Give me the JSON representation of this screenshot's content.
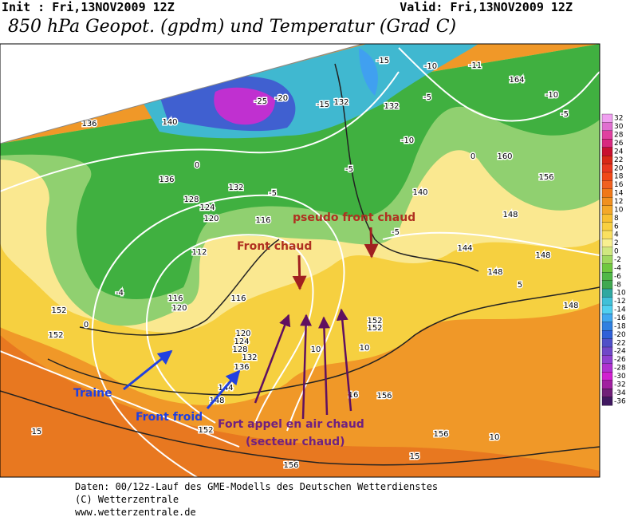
{
  "header": {
    "init": "Init : Fri,13NOV2009  12Z",
    "valid": "Valid: Fri,13NOV2009  12Z",
    "title": "850 hPa Geopot. (gpdm) und Temperatur (Grad C)"
  },
  "colorbar": {
    "labels": [
      32,
      30,
      28,
      26,
      24,
      22,
      20,
      18,
      16,
      14,
      12,
      10,
      8,
      6,
      4,
      2,
      0,
      -2,
      -4,
      -6,
      -8,
      -10,
      -12,
      -14,
      -16,
      -18,
      -20,
      -22,
      -24,
      -26,
      -28,
      -30,
      -32,
      -34,
      -36
    ],
    "colors": [
      "#f0a0f0",
      "#e070d0",
      "#e040a0",
      "#d82880",
      "#c81030",
      "#d82818",
      "#e83820",
      "#f04818",
      "#f06020",
      "#f07818",
      "#f09020",
      "#f4a828",
      "#f8c030",
      "#f8d040",
      "#fae060",
      "#f8f090",
      "#d0e880",
      "#a0d860",
      "#70c840",
      "#50b848",
      "#40a850",
      "#30a8a0",
      "#40c0d8",
      "#50d0f0",
      "#40a8f0",
      "#3080e0",
      "#3060d8",
      "#5050c8",
      "#7048c8",
      "#9040d0",
      "#b030d0",
      "#d020d0",
      "#a020a0",
      "#702078",
      "#401860"
    ]
  },
  "annotations": {
    "pseudo_front": "pseudo front chaud",
    "front_chaud": "Front chaud",
    "traine": "Traine",
    "front_froid": "Front froid",
    "appel": "Fort appel en air chaud",
    "secteur": "(secteur chaud)"
  },
  "contour_labels": [
    "136",
    "140",
    "-25",
    "-20",
    "-15",
    "132",
    "-15",
    "-10",
    "-11",
    "164",
    "-10",
    "-5",
    "132",
    "-5",
    "-10",
    "-5",
    "140",
    "160",
    "156",
    "148",
    "-5",
    "144",
    "148",
    "148",
    "148",
    "136",
    "132",
    "128",
    "124",
    "120",
    "116",
    "112",
    "-5",
    "116",
    "120",
    "116",
    "152",
    "0",
    "-4",
    "152",
    "120",
    "124",
    "128",
    "132",
    "136",
    "144",
    "148",
    "152",
    "10",
    "10",
    "16",
    "156",
    "152",
    "152",
    "156",
    "10",
    "15",
    "15",
    "156",
    "5",
    "0",
    "0"
  ],
  "footer": [
    "Daten: 00/12z-Lauf des GME-Modells des Deutschen Wetterdienstes",
    "(C) Wetterzentrale",
    "www.wetterzentrale.de"
  ]
}
